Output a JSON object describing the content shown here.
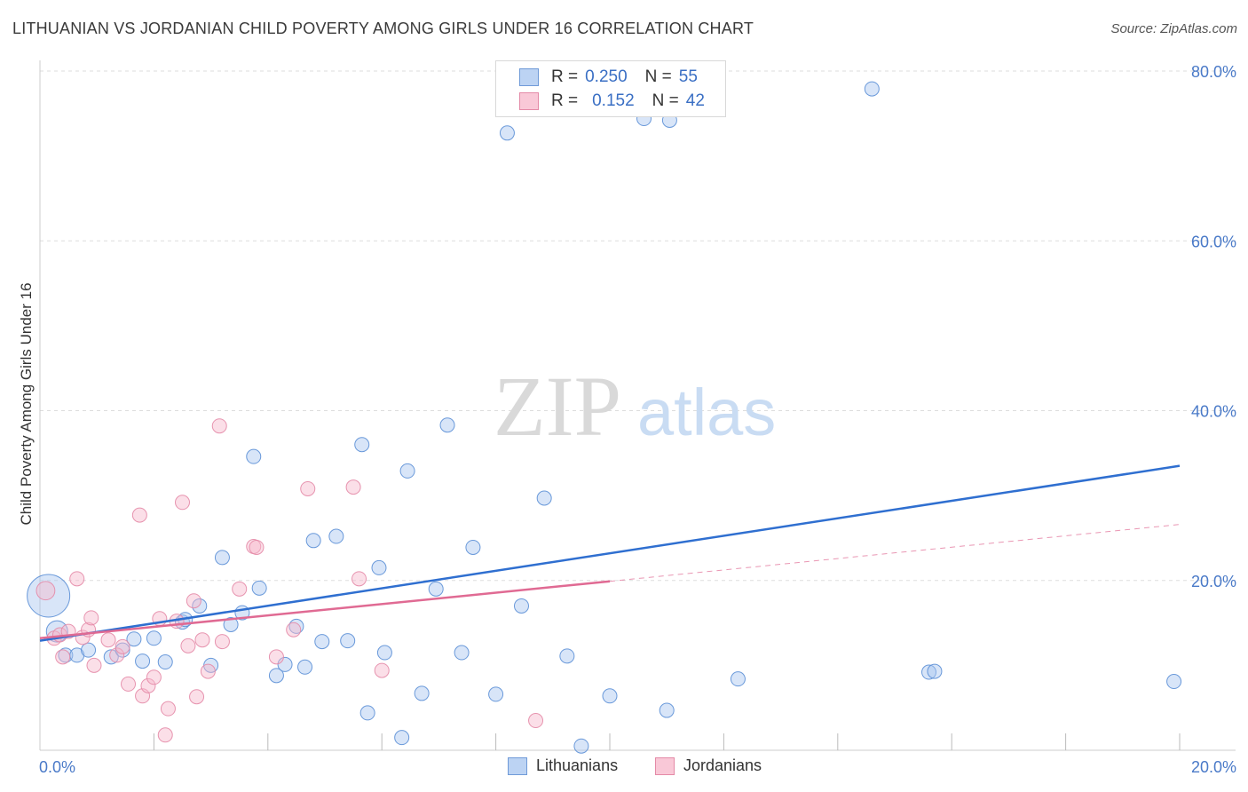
{
  "header": {
    "title": "LITHUANIAN VS JORDANIAN CHILD POVERTY AMONG GIRLS UNDER 16 CORRELATION CHART",
    "source": "Source: ZipAtlas.com"
  },
  "watermark": {
    "zip": "ZIP",
    "atlas": "atlas"
  },
  "legend": {
    "rows": [
      {
        "r_label": "R =",
        "r_value": "0.250",
        "n_label": "N =",
        "n_value": "55"
      },
      {
        "r_label": "R =",
        "r_value": "0.152",
        "n_label": "N =",
        "n_value": "42"
      }
    ]
  },
  "colors": {
    "blue_fill": "#a9c6ef",
    "blue_stroke": "#5b8fd6",
    "blue_line": "#2f6fd0",
    "pink_fill": "#f7b8cb",
    "pink_stroke": "#e48aa7",
    "pink_line": "#e06a93",
    "grid": "#dddddd",
    "axis_text": "#4a7ac8"
  },
  "chart_data": {
    "type": "scatter",
    "title": "LITHUANIAN VS JORDANIAN CHILD POVERTY AMONG GIRLS UNDER 16 CORRELATION CHART",
    "xlabel": "",
    "ylabel": "Child Poverty Among Girls Under 16",
    "xlim": [
      0,
      20
    ],
    "ylim": [
      0,
      80
    ],
    "x_tick_labels": [
      "0.0%",
      "20.0%"
    ],
    "y_ticks": [
      20,
      40,
      60,
      80
    ],
    "y_tick_labels": [
      "20.0%",
      "40.0%",
      "60.0%",
      "80.0%"
    ],
    "grid": true,
    "series": [
      {
        "name": "Lithuanians",
        "color": "#a9c6ef",
        "trend": {
          "x": [
            0,
            20
          ],
          "y": [
            12.9,
            33.5
          ],
          "style": "solid"
        },
        "points": [
          [
            0.15,
            18.2,
            3
          ],
          [
            0.3,
            14,
            1.5
          ],
          [
            0.45,
            11.2,
            1
          ],
          [
            0.65,
            11.2,
            1
          ],
          [
            0.85,
            11.8,
            1
          ],
          [
            1.25,
            11,
            1
          ],
          [
            1.45,
            11.8,
            1
          ],
          [
            1.65,
            13.1,
            1
          ],
          [
            1.8,
            10.5,
            1
          ],
          [
            2.0,
            13.2,
            1
          ],
          [
            2.2,
            10.4,
            1
          ],
          [
            2.5,
            15.1,
            1
          ],
          [
            2.55,
            15.4,
            1
          ],
          [
            2.8,
            17,
            1
          ],
          [
            3.0,
            10,
            1
          ],
          [
            3.2,
            22.7,
            1
          ],
          [
            3.35,
            14.8,
            1
          ],
          [
            3.55,
            16.2,
            1
          ],
          [
            3.75,
            34.6,
            1
          ],
          [
            3.85,
            19.1,
            1
          ],
          [
            4.15,
            8.8,
            1
          ],
          [
            4.3,
            10.1,
            1
          ],
          [
            4.5,
            14.6,
            1
          ],
          [
            4.65,
            9.8,
            1
          ],
          [
            4.8,
            24.7,
            1
          ],
          [
            4.95,
            12.8,
            1
          ],
          [
            5.2,
            25.2,
            1
          ],
          [
            5.4,
            12.9,
            1
          ],
          [
            5.65,
            36,
            1
          ],
          [
            5.75,
            4.4,
            1
          ],
          [
            5.95,
            21.5,
            1
          ],
          [
            6.05,
            11.5,
            1
          ],
          [
            6.35,
            1.5,
            1
          ],
          [
            6.45,
            32.9,
            1
          ],
          [
            6.7,
            6.7,
            1
          ],
          [
            6.95,
            19,
            1
          ],
          [
            7.15,
            38.3,
            1
          ],
          [
            7.4,
            11.5,
            1
          ],
          [
            7.6,
            23.9,
            1
          ],
          [
            8.0,
            6.6,
            1
          ],
          [
            8.2,
            72.7,
            1
          ],
          [
            8.45,
            17,
            1
          ],
          [
            8.85,
            29.7,
            1
          ],
          [
            9.25,
            11.1,
            1
          ],
          [
            9.5,
            0.5,
            1
          ],
          [
            10.0,
            6.4,
            1
          ],
          [
            10.6,
            74.4,
            1
          ],
          [
            11.0,
            4.7,
            1
          ],
          [
            11.05,
            74.2,
            1
          ],
          [
            12.25,
            8.4,
            1
          ],
          [
            14.6,
            77.9,
            1
          ],
          [
            15.6,
            9.2,
            1
          ],
          [
            15.7,
            9.3,
            1
          ],
          [
            19.9,
            8.1,
            1
          ]
        ]
      },
      {
        "name": "Jordanians",
        "color": "#f7b8cb",
        "trend": {
          "x": [
            0,
            10
          ],
          "y": [
            13.2,
            19.9
          ],
          "style": "solid",
          "extension": {
            "x": [
              10,
              20
            ],
            "y": [
              19.9,
              26.6
            ],
            "style": "dashed"
          }
        },
        "points": [
          [
            0.1,
            18.8,
            1.3
          ],
          [
            0.25,
            13.2,
            1
          ],
          [
            0.35,
            13.6,
            1
          ],
          [
            0.4,
            11,
            1
          ],
          [
            0.5,
            14,
            1
          ],
          [
            0.65,
            20.2,
            1
          ],
          [
            0.75,
            13.3,
            1
          ],
          [
            0.85,
            14.2,
            1
          ],
          [
            0.9,
            15.6,
            1
          ],
          [
            0.95,
            10,
            1
          ],
          [
            1.2,
            13,
            1
          ],
          [
            1.35,
            11.2,
            1
          ],
          [
            1.45,
            12.2,
            1
          ],
          [
            1.55,
            7.8,
            1
          ],
          [
            1.75,
            27.7,
            1
          ],
          [
            1.8,
            6.4,
            1
          ],
          [
            1.9,
            7.6,
            1
          ],
          [
            2.0,
            8.6,
            1
          ],
          [
            2.1,
            15.5,
            1
          ],
          [
            2.2,
            1.8,
            1
          ],
          [
            2.25,
            4.9,
            1
          ],
          [
            2.4,
            15.2,
            1
          ],
          [
            2.5,
            29.2,
            1
          ],
          [
            2.6,
            12.3,
            1
          ],
          [
            2.7,
            17.6,
            1
          ],
          [
            2.75,
            6.3,
            1
          ],
          [
            2.85,
            13,
            1
          ],
          [
            2.95,
            9.3,
            1
          ],
          [
            3.15,
            38.2,
            1
          ],
          [
            3.2,
            12.8,
            1
          ],
          [
            3.5,
            19,
            1
          ],
          [
            3.75,
            24,
            1
          ],
          [
            3.8,
            23.9,
            1
          ],
          [
            4.15,
            11,
            1
          ],
          [
            4.45,
            14.2,
            1
          ],
          [
            4.7,
            30.8,
            1
          ],
          [
            5.5,
            31,
            1
          ],
          [
            5.6,
            20.2,
            1
          ],
          [
            6.0,
            9.4,
            1
          ],
          [
            8.7,
            3.5,
            1
          ]
        ]
      }
    ]
  },
  "bottom_legend": {
    "items": [
      "Lithuanians",
      "Jordanians"
    ]
  }
}
